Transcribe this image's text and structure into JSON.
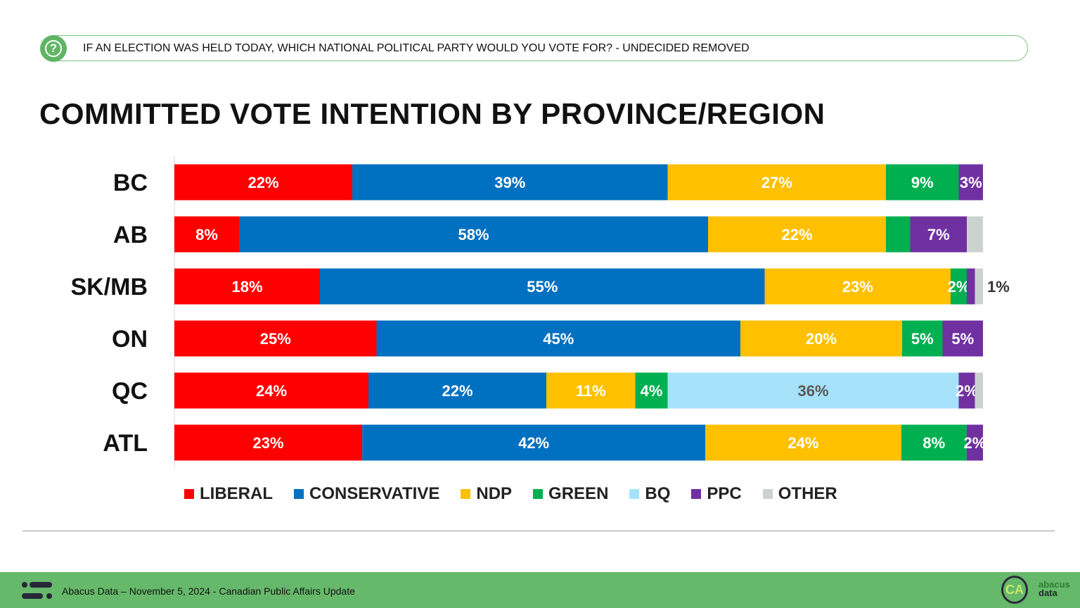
{
  "header": {
    "question": "IF AN ELECTION WAS HELD TODAY, WHICH NATIONAL POLITICAL PARTY WOULD YOU VOTE FOR? - UNDECIDED REMOVED",
    "icon": "question-circle-icon"
  },
  "chart_data": {
    "type": "bar",
    "orientation": "horizontal-stacked-100",
    "title": "COMMITTED VOTE INTENTION BY PROVINCE/REGION",
    "categories": [
      "BC",
      "AB",
      "SK/MB",
      "ON",
      "QC",
      "ATL"
    ],
    "xlim": [
      0,
      100
    ],
    "grid": false,
    "legend_position": "bottom",
    "series": [
      {
        "name": "LIBERAL",
        "color": "#ff0000",
        "values": [
          22,
          8,
          18,
          25,
          24,
          23
        ],
        "labels": [
          "22%",
          "8%",
          "18%",
          "25%",
          "24%",
          "23%"
        ]
      },
      {
        "name": "CONSERVATIVE",
        "color": "#0070c0",
        "values": [
          39,
          58,
          55,
          45,
          22,
          42
        ],
        "labels": [
          "39%",
          "58%",
          "55%",
          "45%",
          "22%",
          "42%"
        ]
      },
      {
        "name": "NDP",
        "color": "#ffc000",
        "values": [
          27,
          22,
          23,
          20,
          11,
          24
        ],
        "labels": [
          "27%",
          "22%",
          "23%",
          "20%",
          "11%",
          "24%"
        ]
      },
      {
        "name": "GREEN",
        "color": "#00b050",
        "values": [
          9,
          3,
          2,
          5,
          4,
          8
        ],
        "labels": [
          "9%",
          "",
          "2%",
          "5%",
          "4%",
          "8%"
        ]
      },
      {
        "name": "BQ",
        "color": "#a6e3fb",
        "values": [
          0,
          0,
          0,
          0,
          36,
          0
        ],
        "labels": [
          "",
          "",
          "",
          "",
          "36%",
          ""
        ]
      },
      {
        "name": "PPC",
        "color": "#7030a0",
        "values": [
          3,
          7,
          1,
          5,
          2,
          2
        ],
        "labels": [
          "3%",
          "7%",
          "1%",
          "5%",
          "2%",
          "2%"
        ]
      },
      {
        "name": "OTHER",
        "color": "#ccd3ce",
        "values": [
          0,
          2,
          1,
          0,
          1,
          0
        ],
        "labels": [
          "",
          "",
          "",
          "",
          "",
          ""
        ]
      }
    ]
  },
  "footer": {
    "text": "Abacus Data – November 5, 2024 - Canadian Public Affairs Update",
    "logo_text": "CA",
    "brand_line1": "abacus",
    "brand_line2": "data"
  }
}
